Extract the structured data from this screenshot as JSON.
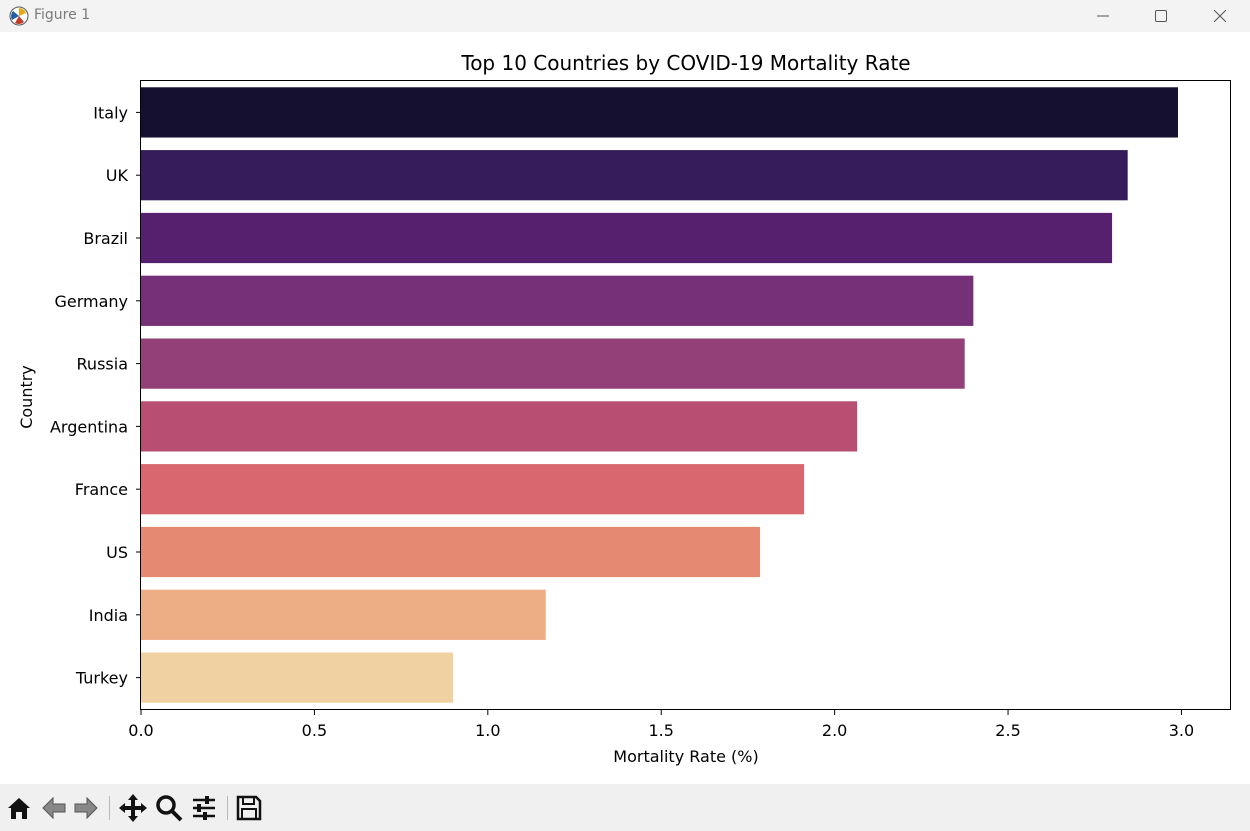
{
  "window": {
    "title": "Figure 1",
    "icons": [
      "app-icon",
      "minimize-icon",
      "maximize-icon",
      "close-icon"
    ]
  },
  "toolbar": {
    "tools": [
      "home-icon",
      "back-icon",
      "forward-icon",
      "pan-icon",
      "zoom-icon",
      "configure-subplots-icon",
      "save-icon"
    ]
  },
  "chart_data": {
    "type": "bar",
    "orientation": "horizontal",
    "title": "Top 10 Countries by COVID-19 Mortality Rate",
    "xlabel": "Mortality Rate (%)",
    "ylabel": "Country",
    "categories": [
      "Italy",
      "UK",
      "Brazil",
      "Germany",
      "Russia",
      "Argentina",
      "France",
      "US",
      "India",
      "Turkey"
    ],
    "values": [
      2.99,
      2.845,
      2.8,
      2.4,
      2.375,
      2.065,
      1.912,
      1.785,
      1.167,
      0.9
    ],
    "colors": [
      "#150f30",
      "#371c5c",
      "#57206f",
      "#753077",
      "#933f78",
      "#b94e73",
      "#d8676f",
      "#e58972",
      "#edad85",
      "#f0d1a2"
    ],
    "xlim": [
      0,
      3.14
    ],
    "xticks": [
      "0.0",
      "0.5",
      "1.0",
      "1.5",
      "2.0",
      "2.5",
      "3.0"
    ],
    "grid": false,
    "legend": "none"
  }
}
